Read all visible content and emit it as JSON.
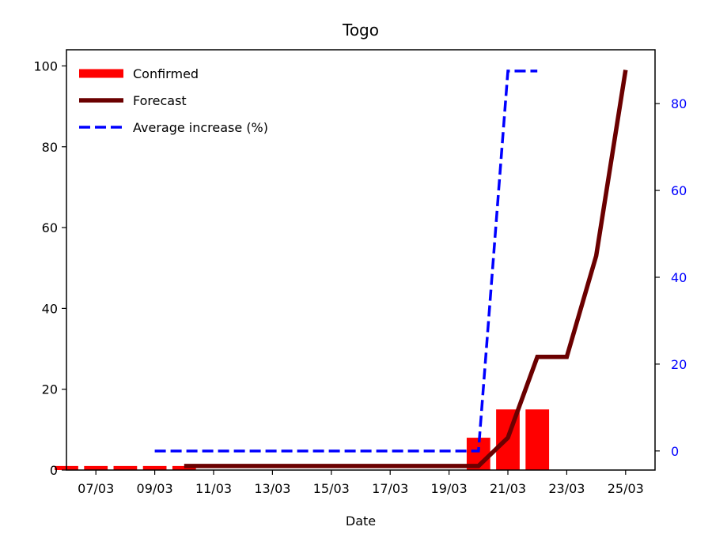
{
  "chart_data": {
    "type": "bar",
    "title": "Togo",
    "xlabel": "Date",
    "x_tick_labels": [
      "07/03",
      "09/03",
      "11/03",
      "13/03",
      "15/03",
      "17/03",
      "19/03",
      "21/03",
      "23/03",
      "25/03"
    ],
    "x_tick_days": [
      7,
      9,
      11,
      13,
      15,
      17,
      19,
      21,
      23,
      25
    ],
    "xlim": [
      6,
      26
    ],
    "ylim_left": [
      0,
      104
    ],
    "yticks_left": [
      0,
      20,
      40,
      60,
      80,
      100
    ],
    "ylim_right": [
      -4.4,
      92.4
    ],
    "yticks_right": [
      0,
      20,
      40,
      60,
      80
    ],
    "right_axis_color": "#0000ff",
    "legend_position": "upper-left",
    "series": [
      {
        "name": "Confirmed",
        "kind": "bar",
        "color": "#ff0000",
        "x": [
          6,
          7,
          8,
          9,
          10,
          20,
          21,
          22
        ],
        "values": [
          1,
          1,
          1,
          1,
          1,
          8,
          15,
          15
        ]
      },
      {
        "name": "Forecast",
        "kind": "line",
        "color": "#6b0000",
        "x": [
          10,
          11,
          12,
          13,
          14,
          15,
          16,
          17,
          18,
          19,
          20,
          21,
          22,
          23,
          24,
          25
        ],
        "values": [
          1,
          1,
          1,
          1,
          1,
          1,
          1,
          1,
          1,
          1,
          1,
          8,
          28,
          28,
          53,
          99
        ]
      },
      {
        "name": "Average increase (%)",
        "kind": "dashed-line",
        "axis": "right",
        "color": "#0000ff",
        "x": [
          9,
          10,
          11,
          12,
          13,
          14,
          15,
          16,
          17,
          18,
          19,
          20,
          21,
          22
        ],
        "values": [
          0,
          0,
          0,
          0,
          0,
          0,
          0,
          0,
          0,
          0,
          0,
          0,
          87.5,
          87.5
        ]
      }
    ]
  }
}
